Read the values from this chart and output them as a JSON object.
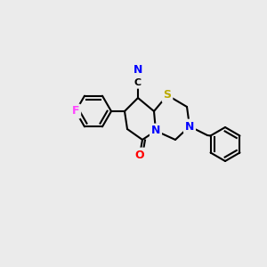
{
  "bg_color": "#ebebeb",
  "bond_color": "#000000",
  "atom_colors": {
    "N": "#0000ff",
    "S": "#bbaa00",
    "O": "#ff0000",
    "F": "#ff44ff",
    "C": "#000000"
  },
  "figsize": [
    3.0,
    3.0
  ],
  "dpi": 100
}
